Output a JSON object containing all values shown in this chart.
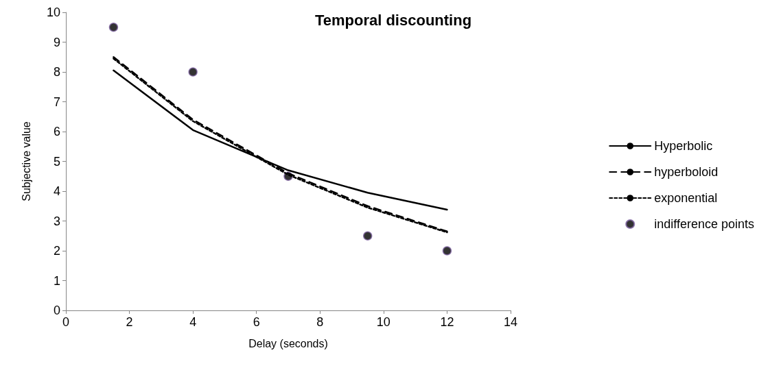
{
  "chart_data": {
    "type": "line",
    "title": "Temporal discounting",
    "xlabel": "Delay (seconds)",
    "ylabel": "Subjective value",
    "x": [
      1.5,
      4,
      7,
      9.5,
      12
    ],
    "series": [
      {
        "name": "Hyperbolic",
        "color": "#000000",
        "line_style": "solid",
        "marker": "none",
        "values": [
          8.05,
          6.05,
          4.7,
          3.95,
          3.38
        ]
      },
      {
        "name": "hyperboloid",
        "color": "#000000",
        "line_style": "dashed",
        "marker": "none",
        "values": [
          8.5,
          6.4,
          4.6,
          3.5,
          2.65
        ]
      },
      {
        "name": "exponential",
        "color": "#000000",
        "line_style": "dotted",
        "marker": "none",
        "values": [
          8.45,
          6.35,
          4.55,
          3.45,
          2.62
        ]
      },
      {
        "name": "indifference points",
        "type": "scatter",
        "color": "#000000",
        "marker": "circle",
        "values": [
          9.5,
          8,
          4.5,
          2.5,
          2
        ]
      }
    ],
    "xlim": [
      0,
      14
    ],
    "xticks": [
      0,
      2,
      4,
      6,
      8,
      10,
      12,
      14
    ],
    "ylim": [
      0,
      10
    ],
    "yticks": [
      0,
      1,
      2,
      3,
      4,
      5,
      6,
      7,
      8,
      9,
      10
    ],
    "grid": false,
    "legend": "right"
  }
}
